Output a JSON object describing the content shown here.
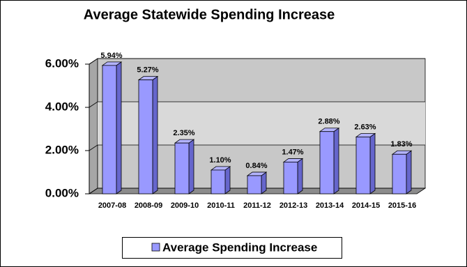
{
  "chart_data": {
    "type": "bar3d",
    "title": "Average Statewide Spending Increase",
    "categories": [
      "2007-08",
      "2008-09",
      "2009-10",
      "2010-11",
      "2011-12",
      "2012-13",
      "2013-14",
      "2014-15",
      "2015-16"
    ],
    "series": [
      {
        "name": "Average Spending Increase",
        "color": "#9999ff",
        "values": [
          5.94,
          5.27,
          2.35,
          1.1,
          0.84,
          1.47,
          2.88,
          2.63,
          1.83
        ],
        "value_labels": [
          "5.94%",
          "5.27%",
          "2.35%",
          "1.10%",
          "0.84%",
          "1.47%",
          "2.88%",
          "2.63%",
          "1.83%"
        ]
      }
    ],
    "ylim": [
      0,
      6
    ],
    "yticks": [
      {
        "value": 0,
        "label": "0.00%"
      },
      {
        "value": 2,
        "label": "2.00%"
      },
      {
        "value": 4,
        "label": "4.00%"
      },
      {
        "value": 6,
        "label": "6.00%"
      }
    ],
    "grid": true,
    "legend": "bottom"
  }
}
